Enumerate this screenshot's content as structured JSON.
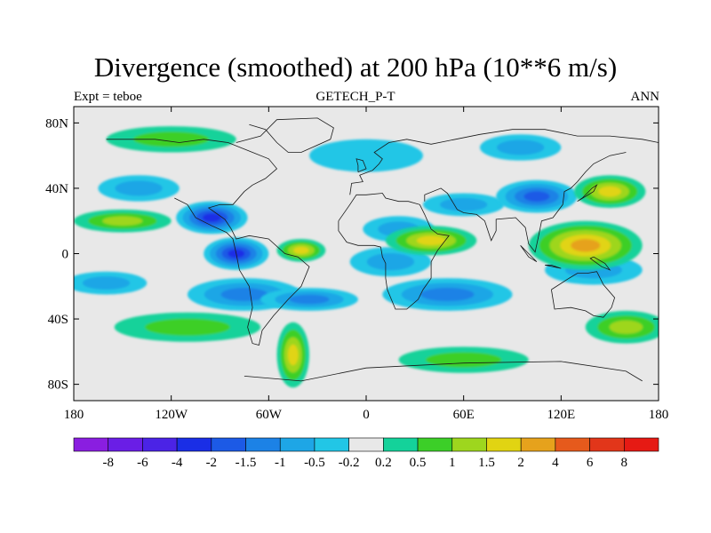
{
  "chart_data": {
    "type": "heatmap",
    "title": "Divergence (smoothed) at 200 hPa (10**6 m/s)",
    "left_label": "Expt = teboe",
    "center_label": "GETECH_P-T",
    "right_label": "ANN",
    "x_ticks": [
      {
        "value": -180,
        "label": "180"
      },
      {
        "value": -120,
        "label": "120W"
      },
      {
        "value": -60,
        "label": "60W"
      },
      {
        "value": 0,
        "label": "0"
      },
      {
        "value": 60,
        "label": "60E"
      },
      {
        "value": 120,
        "label": "120E"
      },
      {
        "value": 180,
        "label": "180"
      }
    ],
    "y_ticks": [
      {
        "value": 80,
        "label": "80N"
      },
      {
        "value": 40,
        "label": "40N"
      },
      {
        "value": 0,
        "label": "0"
      },
      {
        "value": -40,
        "label": "40S"
      },
      {
        "value": -80,
        "label": "80S"
      }
    ],
    "xlim": [
      -180,
      180
    ],
    "ylim": [
      -90,
      90
    ],
    "colorbar": {
      "labels": [
        "-8",
        "-6",
        "-4",
        "-2",
        "-1.5",
        "-1",
        "-0.5",
        "-0.2",
        "0.2",
        "0.5",
        "1",
        "1.5",
        "2",
        "4",
        "6",
        "8"
      ],
      "colors": [
        "#8a1ee0",
        "#6a1ee6",
        "#4b23e6",
        "#1a2ee6",
        "#1c5ae6",
        "#1c82e6",
        "#1ea6e6",
        "#22c6e6",
        "#e8e8e8",
        "#14d29a",
        "#3ccf28",
        "#9ed61e",
        "#e1d412",
        "#e6a21c",
        "#e65a1c",
        "#e2361a",
        "#e61a14"
      ]
    },
    "features": [
      {
        "type": "blob",
        "lon": -95,
        "lat": 22,
        "rx": 22,
        "ry": 10,
        "level": 3
      },
      {
        "type": "blob",
        "lon": -80,
        "lat": 0,
        "rx": 20,
        "ry": 10,
        "level": 3
      },
      {
        "type": "blob",
        "lon": -75,
        "lat": -25,
        "rx": 35,
        "ry": 10,
        "level": 5
      },
      {
        "type": "blob",
        "lon": -35,
        "lat": -28,
        "rx": 30,
        "ry": 7,
        "level": 5
      },
      {
        "type": "blob",
        "lon": 20,
        "lat": 15,
        "rx": 22,
        "ry": 8,
        "level": 6
      },
      {
        "type": "blob",
        "lon": 15,
        "lat": -5,
        "rx": 25,
        "ry": 9,
        "level": 6
      },
      {
        "type": "blob",
        "lon": 60,
        "lat": 30,
        "rx": 25,
        "ry": 7,
        "level": 6
      },
      {
        "type": "blob",
        "lon": 50,
        "lat": -25,
        "rx": 40,
        "ry": 10,
        "level": 5
      },
      {
        "type": "blob",
        "lon": 105,
        "lat": 35,
        "rx": 25,
        "ry": 10,
        "level": 4
      },
      {
        "type": "blob",
        "lon": 140,
        "lat": -10,
        "rx": 30,
        "ry": 9,
        "level": 6
      },
      {
        "type": "blob",
        "lon": -160,
        "lat": -18,
        "rx": 25,
        "ry": 7,
        "level": 6
      },
      {
        "type": "blob",
        "lon": -140,
        "lat": 40,
        "rx": 25,
        "ry": 8,
        "level": 6
      },
      {
        "type": "blob",
        "lon": 0,
        "lat": 60,
        "rx": 35,
        "ry": 10,
        "level": 7
      },
      {
        "type": "blob",
        "lon": 95,
        "lat": 65,
        "rx": 25,
        "ry": 8,
        "level": 6
      },
      {
        "type": "blob",
        "lon": -150,
        "lat": 20,
        "rx": 30,
        "ry": 7,
        "level": 11
      },
      {
        "type": "blob",
        "lon": -40,
        "lat": 2,
        "rx": 15,
        "ry": 7,
        "level": 12
      },
      {
        "type": "blob",
        "lon": -45,
        "lat": -62,
        "rx": 10,
        "ry": 20,
        "level": 12
      },
      {
        "type": "blob",
        "lon": 40,
        "lat": 8,
        "rx": 28,
        "ry": 9,
        "level": 12
      },
      {
        "type": "blob",
        "lon": 135,
        "lat": 5,
        "rx": 35,
        "ry": 15,
        "level": 13
      },
      {
        "type": "blob",
        "lon": 150,
        "lat": 38,
        "rx": 22,
        "ry": 10,
        "level": 12
      },
      {
        "type": "blob",
        "lon": -110,
        "lat": -45,
        "rx": 45,
        "ry": 9,
        "level": 10
      },
      {
        "type": "blob",
        "lon": -120,
        "lat": 70,
        "rx": 40,
        "ry": 8,
        "level": 10
      },
      {
        "type": "blob",
        "lon": 60,
        "lat": -65,
        "rx": 40,
        "ry": 8,
        "level": 10
      },
      {
        "type": "blob",
        "lon": 160,
        "lat": -45,
        "rx": 25,
        "ry": 10,
        "level": 11
      }
    ],
    "coastlines": [
      [
        [
          -118,
          34
        ],
        [
          -110,
          30
        ],
        [
          -105,
          22
        ],
        [
          -95,
          17
        ],
        [
          -86,
          13
        ],
        [
          -82,
          9
        ],
        [
          -80,
          0
        ],
        [
          -78,
          -10
        ],
        [
          -72,
          -20
        ],
        [
          -70,
          -33
        ],
        [
          -73,
          -45
        ],
        [
          -70,
          -55
        ],
        [
          -66,
          -56
        ],
        [
          -64,
          -47
        ],
        [
          -57,
          -38
        ],
        [
          -48,
          -28
        ],
        [
          -40,
          -20
        ],
        [
          -35,
          -8
        ],
        [
          -42,
          -2
        ],
        [
          -50,
          0
        ],
        [
          -60,
          9
        ],
        [
          -72,
          11
        ],
        [
          -80,
          9
        ],
        [
          -83,
          15
        ],
        [
          -87,
          21
        ],
        [
          -97,
          28
        ],
        [
          -90,
          30
        ],
        [
          -82,
          30
        ],
        [
          -75,
          38
        ],
        [
          -70,
          42
        ],
        [
          -62,
          46
        ],
        [
          -55,
          52
        ],
        [
          -60,
          58
        ],
        [
          -70,
          62
        ],
        [
          -85,
          68
        ],
        [
          -100,
          70
        ],
        [
          -115,
          68
        ],
        [
          -130,
          70
        ],
        [
          -160,
          70
        ]
      ],
      [
        [
          -80,
          68
        ],
        [
          -65,
          72
        ],
        [
          -55,
          82
        ],
        [
          -30,
          83
        ],
        [
          -20,
          77
        ],
        [
          -22,
          70
        ],
        [
          -40,
          62
        ],
        [
          -48,
          62
        ],
        [
          -55,
          68
        ],
        [
          -62,
          76
        ],
        [
          -72,
          79
        ]
      ],
      [
        [
          -10,
          36
        ],
        [
          -9,
          43
        ],
        [
          -2,
          44
        ],
        [
          -4,
          48
        ],
        [
          4,
          51
        ],
        [
          8,
          55
        ],
        [
          10,
          58
        ],
        [
          5,
          62
        ],
        [
          14,
          68
        ],
        [
          25,
          70
        ],
        [
          40,
          67
        ],
        [
          55,
          70
        ],
        [
          70,
          73
        ],
        [
          90,
          76
        ],
        [
          110,
          76
        ],
        [
          130,
          72
        ],
        [
          150,
          72
        ],
        [
          170,
          70
        ],
        [
          180,
          68
        ]
      ],
      [
        [
          -17,
          20
        ],
        [
          -17,
          14
        ],
        [
          -12,
          7
        ],
        [
          -5,
          5
        ],
        [
          5,
          5
        ],
        [
          9,
          4
        ],
        [
          10,
          -2
        ],
        [
          12,
          -6
        ],
        [
          12,
          -15
        ],
        [
          13,
          -22
        ],
        [
          18,
          -34
        ],
        [
          25,
          -34
        ],
        [
          32,
          -28
        ],
        [
          35,
          -22
        ],
        [
          40,
          -15
        ],
        [
          40,
          -5
        ],
        [
          44,
          2
        ],
        [
          51,
          11
        ],
        [
          44,
          12
        ],
        [
          40,
          15
        ],
        [
          36,
          24
        ],
        [
          33,
          30
        ],
        [
          26,
          32
        ],
        [
          20,
          32
        ],
        [
          12,
          34
        ],
        [
          10,
          37
        ],
        [
          0,
          36
        ],
        [
          -6,
          36
        ],
        [
          -10,
          30
        ],
        [
          -17,
          20
        ]
      ],
      [
        [
          36,
          32
        ],
        [
          36,
          36
        ],
        [
          46,
          40
        ],
        [
          50,
          37
        ],
        [
          56,
          27
        ],
        [
          60,
          25
        ],
        [
          68,
          24
        ],
        [
          73,
          20
        ],
        [
          77,
          8
        ],
        [
          80,
          14
        ],
        [
          80,
          21
        ],
        [
          92,
          22
        ],
        [
          98,
          16
        ],
        [
          100,
          6
        ],
        [
          104,
          1
        ],
        [
          106,
          10
        ],
        [
          108,
          20
        ],
        [
          115,
          22
        ],
        [
          121,
          30
        ],
        [
          122,
          38
        ],
        [
          126,
          40
        ],
        [
          130,
          44
        ],
        [
          135,
          50
        ],
        [
          140,
          55
        ],
        [
          150,
          60
        ],
        [
          160,
          62
        ]
      ],
      [
        [
          114,
          -22
        ],
        [
          116,
          -34
        ],
        [
          126,
          -33
        ],
        [
          135,
          -35
        ],
        [
          140,
          -38
        ],
        [
          146,
          -39
        ],
        [
          151,
          -33
        ],
        [
          153,
          -27
        ],
        [
          146,
          -19
        ],
        [
          142,
          -11
        ],
        [
          136,
          -12
        ],
        [
          130,
          -12
        ],
        [
          125,
          -15
        ],
        [
          114,
          -22
        ]
      ],
      [
        [
          -75,
          -75
        ],
        [
          -40,
          -78
        ],
        [
          0,
          -70
        ],
        [
          60,
          -67
        ],
        [
          120,
          -66
        ],
        [
          160,
          -72
        ],
        [
          170,
          -78
        ]
      ],
      [
        [
          140,
          -2
        ],
        [
          147,
          -6
        ],
        [
          150,
          -10
        ],
        [
          145,
          -8
        ],
        [
          138,
          -3
        ],
        [
          140,
          -2
        ]
      ],
      [
        [
          95,
          5
        ],
        [
          100,
          0
        ],
        [
          105,
          -5
        ],
        [
          100,
          -2
        ],
        [
          95,
          5
        ]
      ],
      [
        [
          110,
          -7
        ],
        [
          115,
          -8
        ],
        [
          120,
          -9
        ],
        [
          114,
          -7
        ],
        [
          110,
          -7
        ]
      ],
      [
        [
          130,
          32
        ],
        [
          135,
          35
        ],
        [
          140,
          38
        ],
        [
          142,
          42
        ],
        [
          139,
          40
        ],
        [
          133,
          34
        ],
        [
          130,
          32
        ]
      ],
      [
        [
          -5,
          50
        ],
        [
          0,
          52
        ],
        [
          -2,
          57
        ],
        [
          -6,
          58
        ],
        [
          -5,
          54
        ],
        [
          -5,
          50
        ]
      ]
    ]
  }
}
